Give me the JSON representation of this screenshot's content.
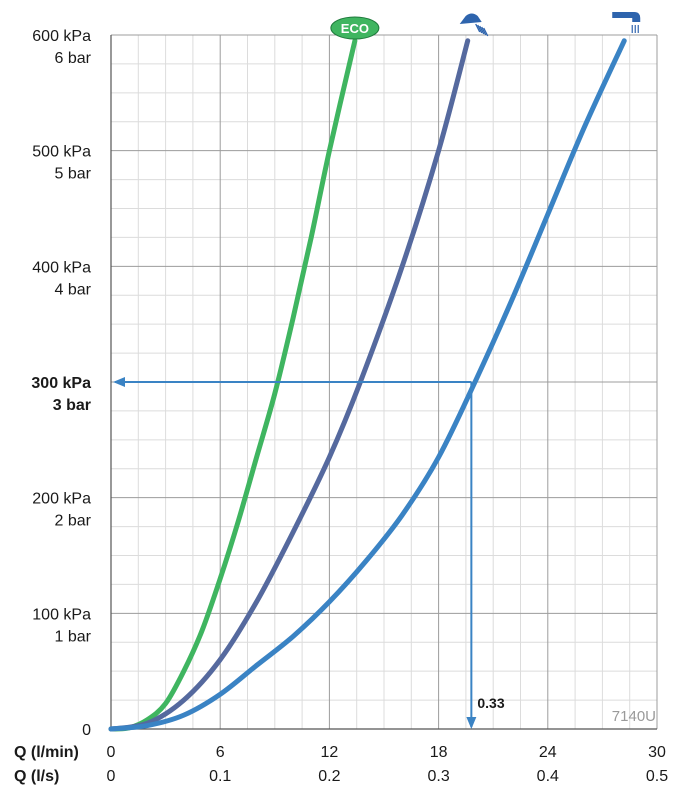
{
  "chart_data": {
    "type": "line",
    "model_code": "7140U",
    "x_axis": {
      "label_primary": "Q (l/min)",
      "label_secondary": "Q (l/s)",
      "ticks_primary": [
        "0",
        "6",
        "12",
        "18",
        "24",
        "30"
      ],
      "ticks_secondary": [
        "0",
        "0.1",
        "0.2",
        "0.3",
        "0.4",
        "0.5"
      ],
      "xlim": [
        0,
        30
      ]
    },
    "y_axis": {
      "ticks": [
        {
          "value": 0,
          "line1": "0",
          "line2": ""
        },
        {
          "value": 100,
          "line1": "100 kPa",
          "line2": "1 bar"
        },
        {
          "value": 200,
          "line1": "200 kPa",
          "line2": "2 bar"
        },
        {
          "value": 300,
          "line1": "300 kPa",
          "line2": "3 bar",
          "bold": true
        },
        {
          "value": 400,
          "line1": "400 kPa",
          "line2": "4 bar"
        },
        {
          "value": 500,
          "line1": "500 kPa",
          "line2": "5 bar"
        },
        {
          "value": 600,
          "line1": "600 kPa",
          "line2": "6 bar"
        }
      ],
      "ylim": [
        0,
        600
      ]
    },
    "grid": true,
    "series": [
      {
        "name": "ECO",
        "marker": "eco-badge",
        "color": "#3fb560",
        "x": [
          0,
          1,
          2,
          3,
          4,
          5,
          6,
          7,
          8,
          9,
          10,
          11,
          12,
          13.4
        ],
        "y": [
          0,
          1,
          8,
          22,
          50,
          85,
          130,
          180,
          235,
          290,
          355,
          425,
          500,
          595
        ]
      },
      {
        "name": "",
        "marker": "shower-head-icon",
        "color": "#55699e",
        "x": [
          0,
          2,
          4,
          6,
          8,
          10,
          12,
          13.7,
          16,
          18,
          19.6
        ],
        "y": [
          0,
          5,
          25,
          60,
          110,
          170,
          235,
          300,
          400,
          500,
          595
        ]
      },
      {
        "name": "",
        "marker": "bath-spout-icon",
        "color": "#3a83c4",
        "x": [
          0,
          2,
          4,
          6,
          8,
          10,
          12,
          14,
          16,
          18,
          20,
          22,
          24,
          26,
          28.2
        ],
        "y": [
          0,
          3,
          12,
          30,
          55,
          80,
          110,
          145,
          185,
          235,
          300,
          370,
          445,
          520,
          595
        ]
      }
    ],
    "annotation": {
      "pressure_y": 300,
      "flow_x": 19.8,
      "label": "0.33",
      "color": "#3a83c4"
    }
  }
}
